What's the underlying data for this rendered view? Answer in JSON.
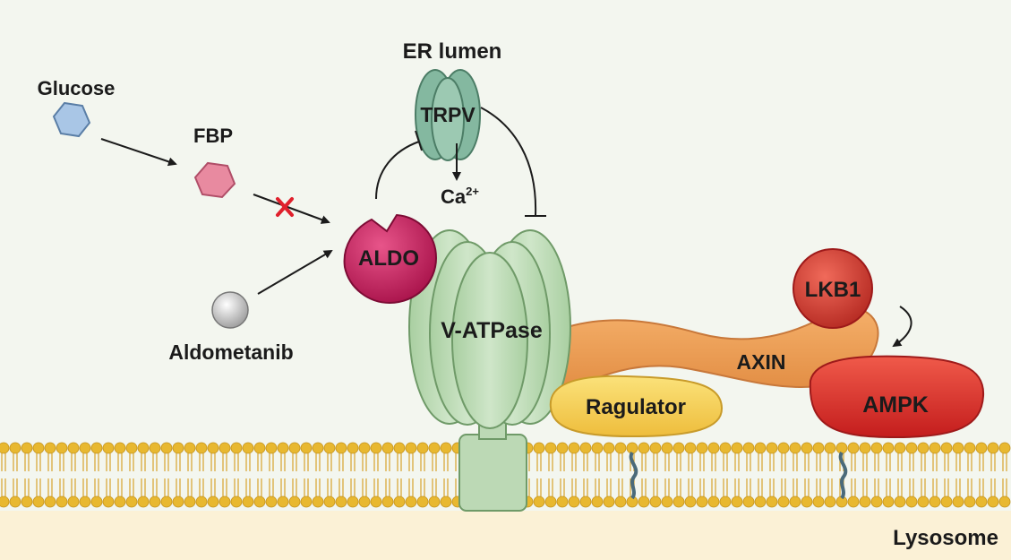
{
  "labels": {
    "er_lumen": "ER lumen",
    "trpv": "TRPV",
    "calcium": "Ca",
    "calcium_charge": "2+",
    "glucose": "Glucose",
    "fbp": "FBP",
    "aldo": "ALDO",
    "aldometanib": "Aldometanib",
    "v_atpase": "V-ATPase",
    "ragulator": "Ragulator",
    "axin": "AXIN",
    "lkb1": "LKB1",
    "ampk": "AMPK",
    "lysosome": "Lysosome"
  },
  "colors": {
    "background": "#f3f6ef",
    "membrane_head": "#e8b830",
    "membrane_tail": "#d9a93a",
    "v_atpase": "#b9d8b2",
    "aldo": "#c41e5a",
    "axin": "#f0a45c",
    "ragulator": "#f4d660",
    "lkb1": "#d9433a",
    "ampk": "#e0332e",
    "trpv": "#7fb59c",
    "glucose": "#a9c6e6",
    "fbp": "#e88aa0",
    "inhibition_mark": "#e0202c"
  }
}
